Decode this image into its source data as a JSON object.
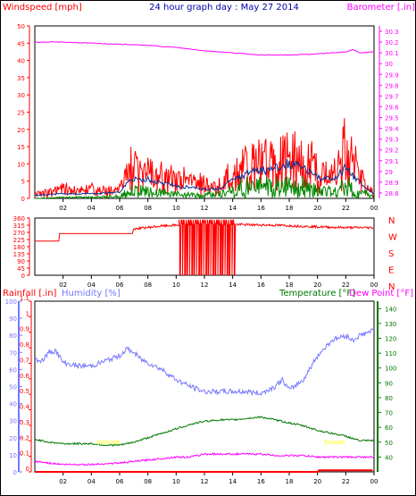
{
  "header": {
    "left": "Windspeed [mph]",
    "center": "24 hour graph day : May 27 2014",
    "right": "Barometer [.in]"
  },
  "colors": {
    "wind": "#ff0000",
    "avg": "#003399",
    "low": "#008800",
    "baro": "#ff00ff",
    "dir": "#ff0000",
    "humidity": "#7777ff",
    "temp": "#007700",
    "dew": "#ff00ff",
    "rain": "#ff0000",
    "annotation": "#ffff00"
  },
  "time_labels": [
    "02",
    "04",
    "06",
    "08",
    "10",
    "12",
    "14",
    "16",
    "18",
    "20",
    "22",
    "00"
  ],
  "chart_data": [
    {
      "type": "line",
      "name": "wind-barometer",
      "left_axis": {
        "label": "Windspeed [mph]",
        "ylim": [
          0,
          50
        ],
        "ticks": [
          0,
          5,
          10,
          15,
          20,
          25,
          30,
          35,
          40,
          45,
          50
        ]
      },
      "right_axis": {
        "label": "Barometer [.in]",
        "ylim": [
          28.75,
          30.35
        ],
        "ticks": [
          "28.8",
          "28.9",
          "29",
          "29.1",
          "29.2",
          "29.3",
          "29.4",
          "29.5",
          "29.6",
          "29.7",
          "29.8",
          "29.9",
          "30",
          "30.1",
          "30.2",
          "30.3"
        ]
      },
      "x": {
        "range": [
          0,
          24
        ],
        "unit": "hour"
      },
      "series": [
        {
          "key": "gust",
          "x": [
            0,
            1,
            2,
            3,
            4,
            5,
            6,
            6.5,
            7,
            8,
            9,
            10,
            11,
            12,
            12.5,
            13,
            14,
            15,
            16,
            17,
            18,
            19,
            20,
            20.5,
            21,
            21.5,
            22,
            22.5,
            23,
            23.5,
            24
          ],
          "y": [
            2,
            3,
            4,
            3,
            4,
            3,
            4,
            10,
            13,
            12,
            9,
            8,
            7,
            6,
            5,
            6,
            12,
            16,
            17,
            18,
            19,
            17,
            13,
            10,
            9,
            15,
            21,
            15,
            9,
            4,
            2
          ]
        },
        {
          "key": "average",
          "x": [
            0,
            2,
            4,
            6,
            6.5,
            7,
            8,
            9,
            10,
            11,
            12,
            13,
            14,
            15,
            16,
            17,
            18,
            19,
            20,
            21,
            22,
            23,
            24
          ],
          "y": [
            1,
            1.5,
            1.5,
            2,
            5,
            6.5,
            6,
            5,
            4,
            3.5,
            3,
            3,
            6,
            8,
            9,
            10,
            11,
            10,
            7,
            6,
            10,
            5,
            1.5
          ]
        },
        {
          "key": "low",
          "x": [
            0,
            2,
            4,
            6,
            6.5,
            7,
            8,
            9,
            10,
            11,
            12,
            13,
            14,
            15,
            16,
            17,
            18,
            19,
            20,
            21,
            22,
            23,
            24
          ],
          "y": [
            0,
            0.5,
            0.5,
            1,
            3,
            4,
            3.5,
            3,
            2,
            1.5,
            1.5,
            2,
            4,
            5,
            5.5,
            6,
            6.5,
            5.5,
            4,
            3.5,
            6,
            3,
            0.5
          ]
        },
        {
          "key": "barometer",
          "x": [
            0,
            2,
            4,
            6,
            8,
            10,
            12,
            14,
            16,
            18,
            20,
            21,
            22,
            22.5,
            23,
            24
          ],
          "y": [
            30.2,
            30.2,
            30.19,
            30.18,
            30.17,
            30.15,
            30.12,
            30.1,
            30.08,
            30.08,
            30.09,
            30.1,
            30.11,
            30.13,
            30.1,
            30.11
          ]
        }
      ]
    },
    {
      "type": "line",
      "name": "wind-direction",
      "left_axis": {
        "ylim": [
          0,
          360
        ],
        "ticks": [
          0,
          45,
          90,
          135,
          180,
          225,
          270,
          315,
          360
        ]
      },
      "right_labels": [
        "N",
        "W",
        "S",
        "E",
        "N"
      ],
      "x": {
        "range": [
          0,
          24
        ],
        "unit": "hour"
      },
      "series": [
        {
          "key": "direction",
          "x": [
            0,
            1.7,
            1.71,
            5,
            6.9,
            7,
            9,
            11,
            12,
            13,
            14,
            15,
            17,
            20,
            22,
            24
          ],
          "y": [
            215,
            215,
            262,
            262,
            262,
            292,
            310,
            320,
            325,
            322,
            320,
            318,
            315,
            305,
            300,
            300
          ]
        }
      ],
      "oscillation": {
        "x_start": 10.2,
        "x_end": 14.2,
        "low": 0,
        "high": 350
      }
    },
    {
      "type": "line",
      "name": "weather",
      "axes": {
        "rainfall": {
          "label": "Rainfall [.in]",
          "ylim": [
            0,
            1.1
          ],
          "ticks": [
            "0",
            "0.1",
            "0.2",
            "0.3",
            "0.4",
            "0.5",
            "0.6",
            "0.7",
            "0.8",
            "0.9",
            "1",
            "1.1"
          ]
        },
        "humidity": {
          "label": "Humidity [%]",
          "ylim": [
            0,
            100
          ],
          "ticks": [
            0,
            10,
            20,
            30,
            40,
            50,
            60,
            70,
            80,
            90,
            100
          ]
        },
        "temperature": {
          "label": "Temperature [°F]",
          "ylim": [
            30,
            145
          ],
          "ticks": [
            40,
            50,
            60,
            70,
            80,
            90,
            100,
            110,
            120,
            130,
            140
          ]
        },
        "dewpoint": {
          "label": "Dew Point [°F]"
        }
      },
      "x": {
        "range": [
          0,
          24
        ],
        "unit": "hour"
      },
      "series": [
        {
          "key": "humidity",
          "x": [
            0,
            0.5,
            1,
            1.5,
            2,
            3,
            4,
            5,
            6,
            6.5,
            7,
            7.5,
            8,
            9,
            10,
            11,
            12,
            13,
            14,
            15,
            16,
            17,
            17.5,
            18,
            19,
            20,
            21,
            22,
            22.5,
            23,
            24
          ],
          "y": [
            66,
            65,
            70,
            71,
            64,
            62,
            62,
            65,
            68,
            72,
            70,
            66,
            64,
            60,
            54,
            50,
            47,
            47,
            47,
            47,
            46,
            50,
            54,
            48,
            54,
            68,
            77,
            80,
            77,
            80,
            83
          ]
        },
        {
          "key": "temperature",
          "x": [
            0,
            1,
            2,
            3,
            4,
            5,
            6,
            7,
            8,
            9,
            10,
            11,
            12,
            13,
            14,
            15,
            16,
            17,
            18,
            19,
            20,
            21,
            22,
            23,
            24
          ],
          "y": [
            52,
            50,
            49,
            49,
            49,
            48,
            48,
            50,
            53,
            56,
            59,
            62,
            64,
            65,
            65,
            66,
            67,
            65,
            63,
            61,
            58,
            56,
            54,
            51,
            51
          ]
        },
        {
          "key": "dewpoint",
          "x": [
            0,
            1,
            2,
            4,
            6,
            8,
            10,
            11,
            12,
            13,
            14,
            15,
            16,
            17,
            18,
            19,
            20,
            22,
            24
          ],
          "y": [
            37,
            36,
            35,
            35,
            36,
            38,
            40,
            40,
            42,
            42,
            42,
            42,
            42,
            41,
            41,
            41,
            40,
            40,
            40
          ]
        },
        {
          "key": "rainfall",
          "x": [
            0,
            20,
            20.01,
            24
          ],
          "y": [
            0,
            0,
            0.01,
            0.01
          ]
        }
      ],
      "annotations": [
        {
          "x": 5.2,
          "label": "Sunrise"
        },
        {
          "x": 21.2,
          "label": "Sunset"
        }
      ]
    }
  ]
}
